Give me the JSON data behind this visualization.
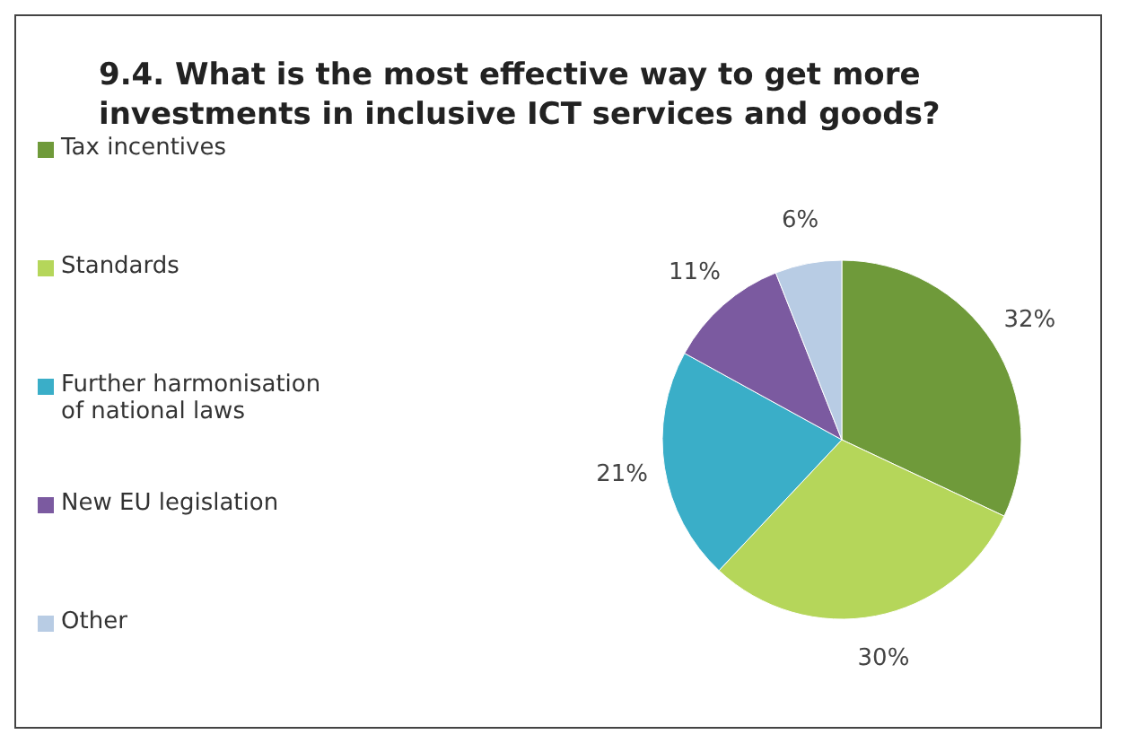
{
  "chart_data": {
    "type": "pie",
    "title": "9.4. What is the most effective way to get more investments in inclusive ICT services and goods?",
    "categories": [
      "Tax incentives",
      "Standards",
      "Further harmonisation of national laws",
      "New EU legislation",
      "Other"
    ],
    "values": [
      32,
      30,
      21,
      11,
      6
    ],
    "value_labels": [
      "32%",
      "30%",
      "21%",
      "11%",
      "6%"
    ],
    "colors": [
      "#6f9a3a",
      "#b5d65a",
      "#3aaec8",
      "#7b5aa0",
      "#b8cce4"
    ],
    "legend": "left"
  }
}
